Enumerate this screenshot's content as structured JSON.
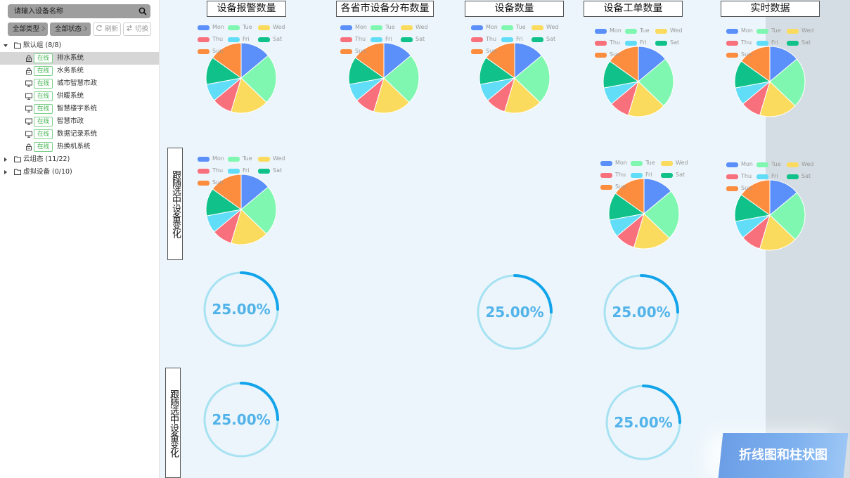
{
  "sidebar": {
    "search_placeholder": "请输入设备名称",
    "filter_type": "全部类型",
    "filter_status": "全部状态",
    "refresh": "刷新",
    "switch": "切换",
    "groups": [
      {
        "label": "默认组 (8/8)",
        "expanded": true,
        "items": [
          {
            "icon": "lock-icon",
            "status": "在线",
            "label": "排水系统",
            "selected": true
          },
          {
            "icon": "lock-icon",
            "status": "在线",
            "label": "水务系统",
            "selected": false
          },
          {
            "icon": "monitor-icon",
            "status": "在线",
            "label": "城市智慧市政",
            "selected": false
          },
          {
            "icon": "monitor-icon",
            "status": "在线",
            "label": "供暖系统",
            "selected": false
          },
          {
            "icon": "monitor-icon",
            "status": "在线",
            "label": "智慧楼宇系统",
            "selected": false
          },
          {
            "icon": "monitor-icon",
            "status": "在线",
            "label": "智慧市政",
            "selected": false
          },
          {
            "icon": "monitor-icon",
            "status": "在线",
            "label": "数据记录系统",
            "selected": false
          },
          {
            "icon": "lock-icon",
            "status": "在线",
            "label": "热换机系统",
            "selected": false
          }
        ]
      },
      {
        "label": "云组态 (11/22)",
        "expanded": false,
        "items": []
      },
      {
        "label": "虚拟设备 (0/10)",
        "expanded": false,
        "items": []
      }
    ]
  },
  "main": {
    "titles": [
      "设备报警数量",
      "各省市设备分布数量",
      "设备数量",
      "设备工单数量",
      "实时数据"
    ],
    "side_labels": [
      "跟随选中设备变化",
      "跟随选中设备变化"
    ],
    "gauges": [
      {
        "label": "25.00%",
        "value": 0.25
      },
      {
        "label": "25.00%",
        "value": 0.25
      },
      {
        "label": "25.00%",
        "value": 0.25
      },
      {
        "label": "25.00%",
        "value": 0.25
      },
      {
        "label": "25.00%",
        "value": 0.25
      }
    ],
    "switch_button": "折线图和柱状图"
  },
  "chart_data": {
    "type": "pie",
    "categories": [
      "Mon",
      "Tue",
      "Wed",
      "Thu",
      "Fri",
      "Sat",
      "Sun"
    ],
    "values": [
      120,
      200,
      150,
      80,
      70,
      110,
      130
    ],
    "colors": [
      "#5b8ff9",
      "#7ff7b0",
      "#fbdb5e",
      "#f9707d",
      "#61ddf7",
      "#10c28a",
      "#fc8c3e"
    ],
    "legend_position": "top-left"
  }
}
